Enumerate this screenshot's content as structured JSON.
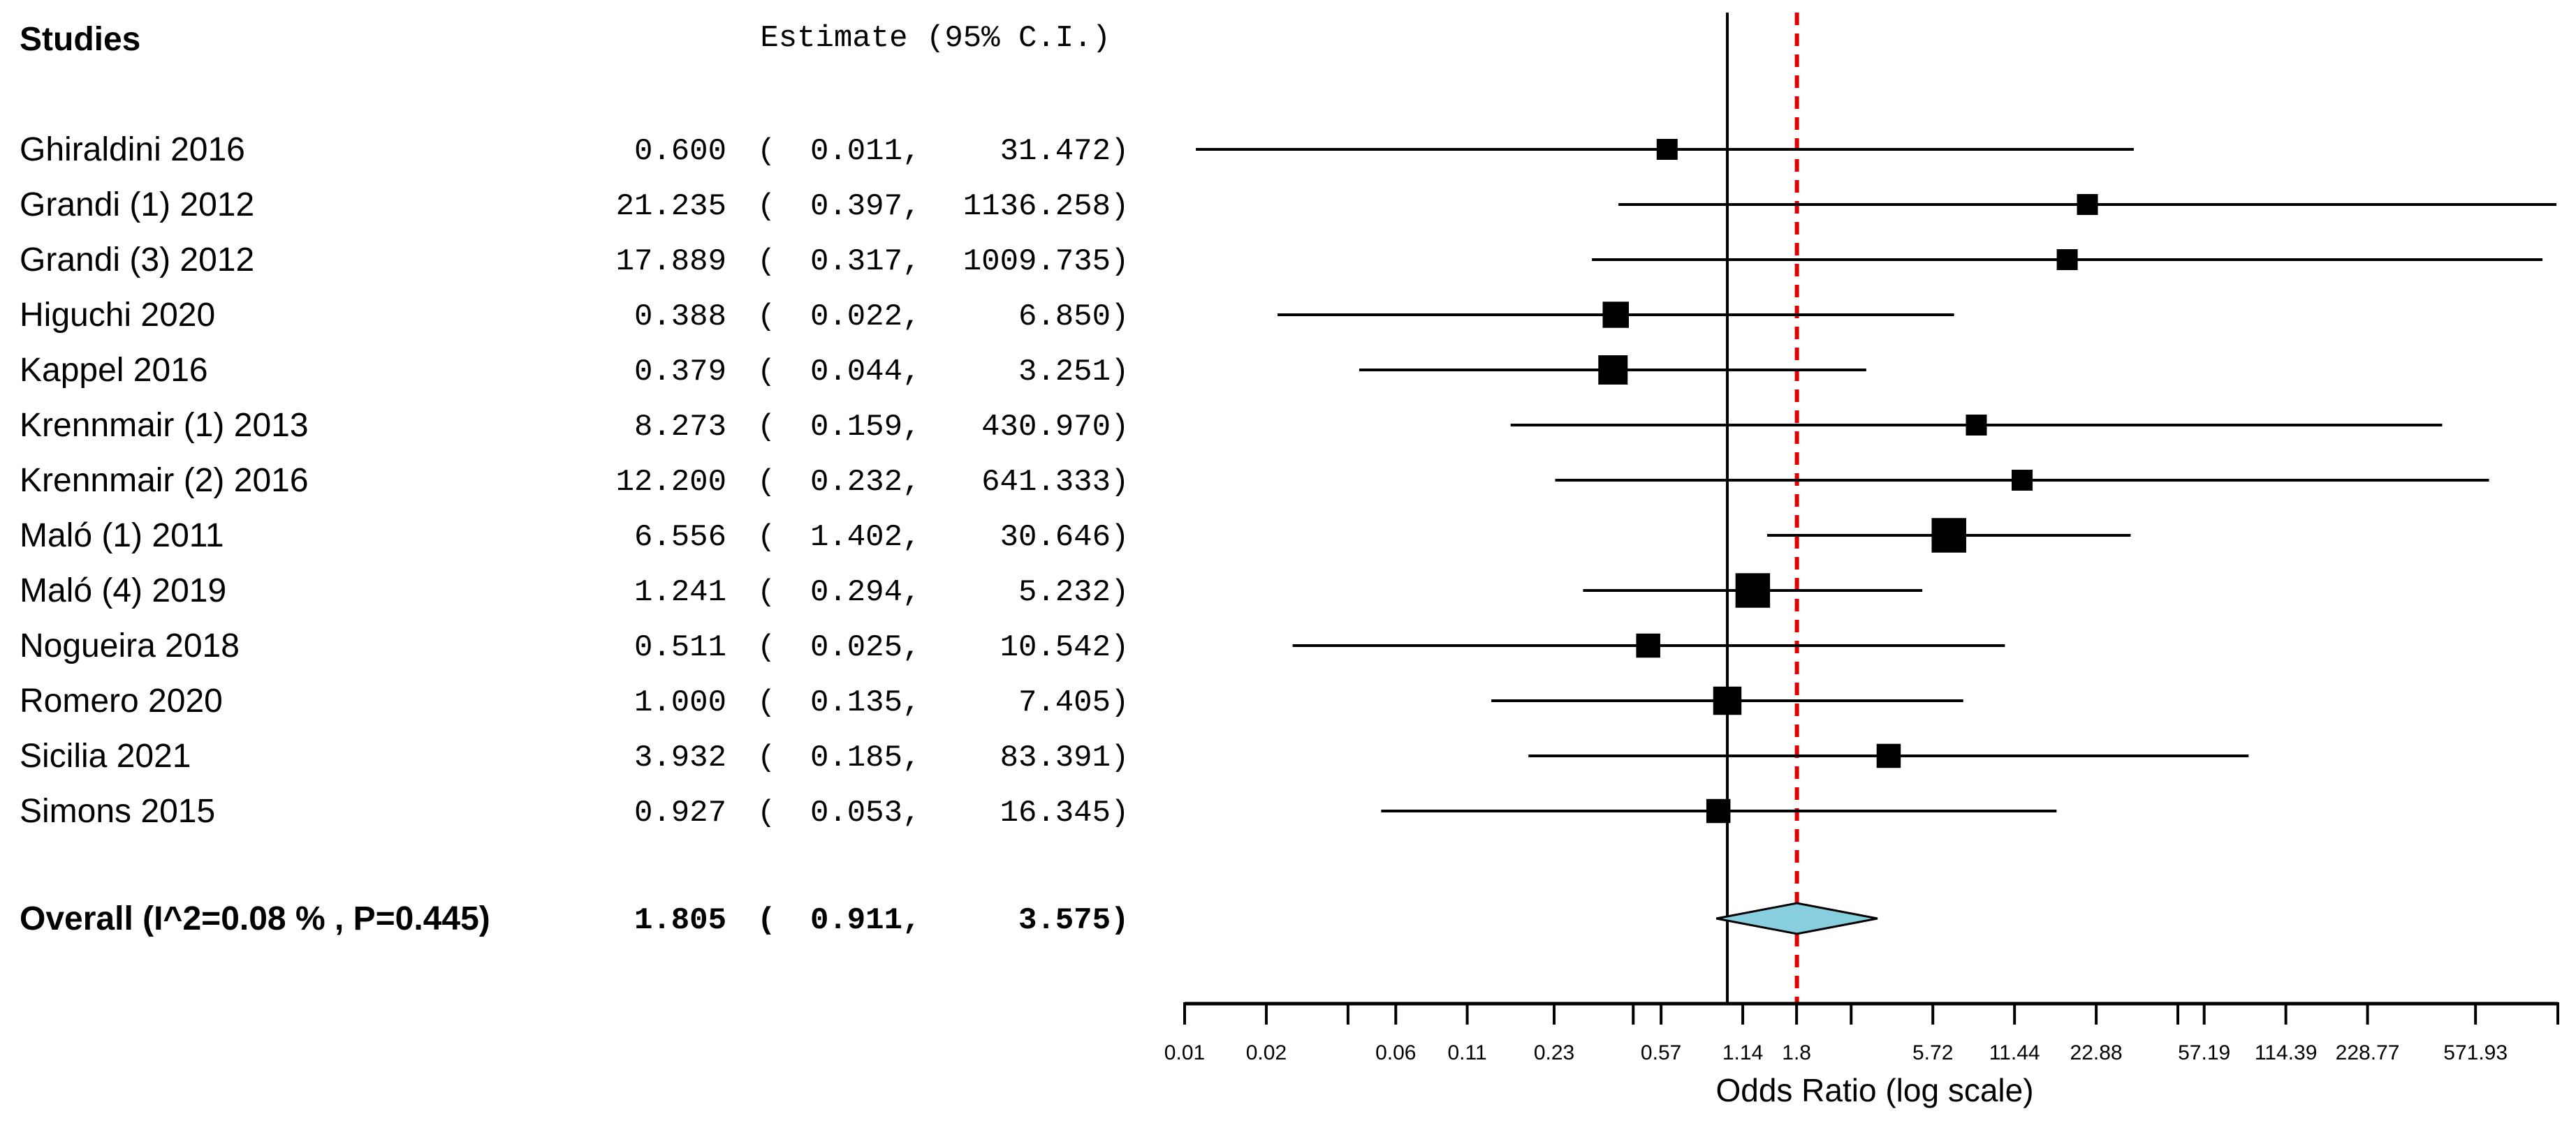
{
  "chart_data": {
    "type": "forest",
    "columns": {
      "studies": "Studies",
      "estimate": "Estimate (95% C.I.)"
    },
    "studies": [
      {
        "name": "Ghiraldini 2016",
        "est": 0.6,
        "lo": 0.011,
        "hi": 31.472,
        "est_txt": "0.600",
        "lo_txt": "0.011",
        "hi_txt": "31.472",
        "weight": 1.0
      },
      {
        "name": "Grandi (1) 2012",
        "est": 21.235,
        "lo": 0.397,
        "hi": 1136.258,
        "est_txt": "21.235",
        "lo_txt": "0.397",
        "hi_txt": "1136.258",
        "weight": 1.0
      },
      {
        "name": "Grandi (3) 2012",
        "est": 17.889,
        "lo": 0.317,
        "hi": 1009.735,
        "est_txt": "17.889",
        "lo_txt": "0.317",
        "hi_txt": "1009.735",
        "weight": 1.0
      },
      {
        "name": "Higuchi 2020",
        "est": 0.388,
        "lo": 0.022,
        "hi": 6.85,
        "est_txt": "0.388",
        "lo_txt": "0.022",
        "hi_txt": "6.850",
        "weight": 1.25
      },
      {
        "name": "Kappel 2016",
        "est": 0.379,
        "lo": 0.044,
        "hi": 3.251,
        "est_txt": "0.379",
        "lo_txt": "0.044",
        "hi_txt": "3.251",
        "weight": 1.4
      },
      {
        "name": "Krennmair (1) 2013",
        "est": 8.273,
        "lo": 0.159,
        "hi": 430.97,
        "est_txt": "8.273",
        "lo_txt": "0.159",
        "hi_txt": "430.970",
        "weight": 1.0
      },
      {
        "name": "Krennmair (2) 2016",
        "est": 12.2,
        "lo": 0.232,
        "hi": 641.333,
        "est_txt": "12.200",
        "lo_txt": "0.232",
        "hi_txt": "641.333",
        "weight": 1.0
      },
      {
        "name": "Maló (1) 2011",
        "est": 6.556,
        "lo": 1.402,
        "hi": 30.646,
        "est_txt": "6.556",
        "lo_txt": "1.402",
        "hi_txt": "30.646",
        "weight": 1.65
      },
      {
        "name": "Maló (4) 2019",
        "est": 1.241,
        "lo": 0.294,
        "hi": 5.232,
        "est_txt": "1.241",
        "lo_txt": "0.294",
        "hi_txt": "5.232",
        "weight": 1.65
      },
      {
        "name": "Nogueira 2018",
        "est": 0.511,
        "lo": 0.025,
        "hi": 10.542,
        "est_txt": "0.511",
        "lo_txt": "0.025",
        "hi_txt": "10.542",
        "weight": 1.15
      },
      {
        "name": "Romero 2020",
        "est": 1.0,
        "lo": 0.135,
        "hi": 7.405,
        "est_txt": "1.000",
        "lo_txt": "0.135",
        "hi_txt": "7.405",
        "weight": 1.35
      },
      {
        "name": "Sicilia 2021",
        "est": 3.932,
        "lo": 0.185,
        "hi": 83.391,
        "est_txt": "3.932",
        "lo_txt": "0.185",
        "hi_txt": "83.391",
        "weight": 1.15
      },
      {
        "name": "Simons 2015",
        "est": 0.927,
        "lo": 0.053,
        "hi": 16.345,
        "est_txt": "0.927",
        "lo_txt": "0.053",
        "hi_txt": "16.345",
        "weight": 1.15
      }
    ],
    "overall": {
      "label": "Overall (I^2=0.08 % , P=0.445)",
      "est": 1.805,
      "lo": 0.911,
      "hi": 3.575,
      "est_txt": "1.805",
      "lo_txt": "0.911",
      "hi_txt": "3.575"
    },
    "null_value": 1.0,
    "x_min": 0.01,
    "x_max": 1150,
    "x_ticks": [
      0.01,
      0.02,
      0.06,
      0.11,
      0.23,
      0.57,
      1.14,
      1.8,
      5.72,
      11.44,
      22.88,
      57.19,
      114.39,
      228.77,
      571.93
    ],
    "x_tick_labels": [
      "0.01",
      "0.02",
      "0.06",
      "0.11",
      "0.23",
      "0.57",
      "1.14",
      "1.8",
      "5.72",
      "11.44",
      "22.88",
      "57.19",
      "114.39",
      "228.77",
      "571.93"
    ],
    "xlabel": "Odds Ratio (log scale)",
    "scale": "log",
    "colors": {
      "diamond": "#87cedf",
      "reference": "#e00000",
      "marks": "#000000"
    }
  }
}
